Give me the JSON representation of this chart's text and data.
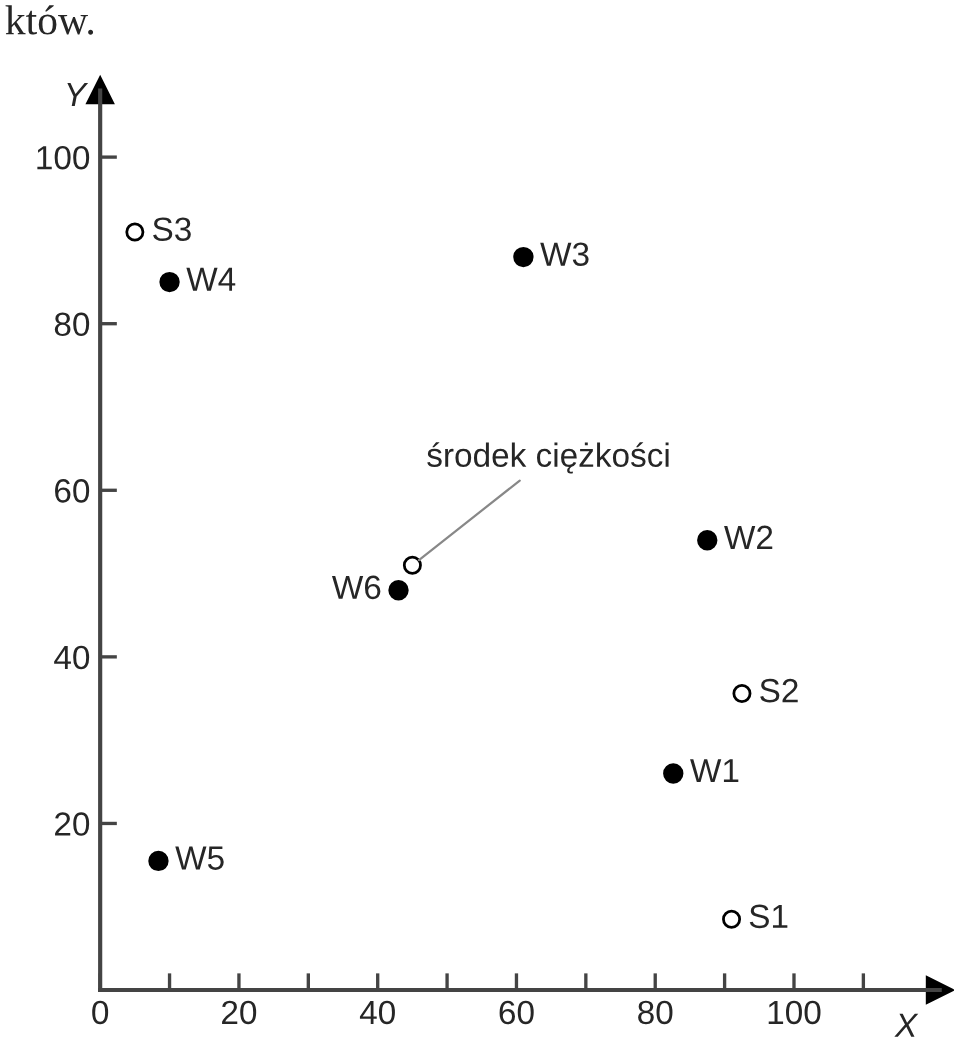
{
  "chart_data": {
    "type": "scatter",
    "xlabel": "X",
    "ylabel": "Y",
    "series": [
      {
        "color": "#000000",
        "x": [
          82.6,
          87.5,
          61,
          10,
          8.4,
          43
        ],
        "values": [
          26,
          54,
          88,
          85,
          15.5,
          48
        ]
      },
      {
        "color": "#000000",
        "x": [
          91,
          92.5,
          5,
          45
        ],
        "values": [
          8.5,
          35.6,
          91,
          51
        ]
      }
    ],
    "marker": "circle",
    "xlim": [
      0,
      121
    ],
    "ylim": [
      0,
      108
    ],
    "xticks": [
      {
        "value": 0,
        "label": "0"
      },
      {
        "value": 10,
        "label": null
      },
      20,
      {
        "value": 30,
        "label": null
      },
      40,
      {
        "value": 50,
        "label": null
      },
      60,
      {
        "value": 70,
        "label": null
      },
      80,
      {
        "value": 90,
        "label": null
      },
      100,
      {
        "value": 110,
        "label": null
      }
    ],
    "yticks": [
      20,
      40,
      60,
      80,
      100
    ],
    "grid": false,
    "legend": false,
    "annotations": [
      "któw.",
      {
        "text": "W1",
        "x": 82.6,
        "y": 26
      },
      {
        "text": "W2",
        "x": 87.5,
        "y": 54
      },
      {
        "text": "W3",
        "x": 61,
        "y": 88
      },
      {
        "text": "W4",
        "x": 10,
        "y": 85
      },
      {
        "text": "W5",
        "x": 8.4,
        "y": 15.5
      },
      {
        "text": "W6",
        "x": 43,
        "y": 48
      },
      {
        "text": "S1",
        "x": 91,
        "y": 8.5
      },
      {
        "text": "S2",
        "x": 92.5,
        "y": 35.6
      },
      {
        "text": "S3",
        "x": 5,
        "y": 91
      },
      {
        "text": "środek ciężkości",
        "x": 45,
        "y": 51
      }
    ]
  }
}
